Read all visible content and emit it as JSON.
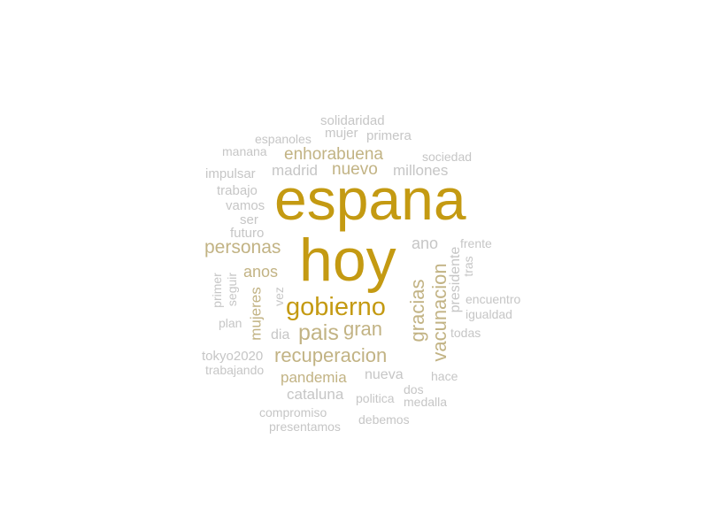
{
  "colors": {
    "primary": "#c49a12",
    "secondary": "#c2b384",
    "tertiary": "#c6c6c6"
  },
  "words": {
    "espana": "espana",
    "hoy": "hoy",
    "gobierno": "gobierno",
    "recuperacion": "recuperacion",
    "pais": "pais",
    "gran": "gran",
    "vacunacion": "vacunacion",
    "gracias": "gracias",
    "personas": "personas",
    "enhorabuena": "enhorabuena",
    "nuevo": "nuevo",
    "madrid": "madrid",
    "millones": "millones",
    "pandemia": "pandemia",
    "anos": "anos",
    "mujeres": "mujeres",
    "ano": "ano",
    "presidente": "presidente",
    "cataluna": "cataluna",
    "nueva": "nueva",
    "dia": "dia",
    "futuro": "futuro",
    "vamos": "vamos",
    "ser": "ser",
    "trabajo": "trabajo",
    "impulsar": "impulsar",
    "manana": "manana",
    "espanoles": "espanoles",
    "mujer": "mujer",
    "primera": "primera",
    "solidaridad": "solidaridad",
    "sociedad": "sociedad",
    "frente": "frente",
    "tras": "tras",
    "encuentro": "encuentro",
    "igualdad": "igualdad",
    "todas": "todas",
    "primer": "primer",
    "seguir": "seguir",
    "vez": "vez",
    "plan": "plan",
    "tokyo2020": "tokyo2020",
    "trabajando": "trabajando",
    "hace": "hace",
    "dos": "dos",
    "politica": "politica",
    "medalla": "medalla",
    "compromiso": "compromiso",
    "debemos": "debemos",
    "presentamos": "presentamos"
  }
}
